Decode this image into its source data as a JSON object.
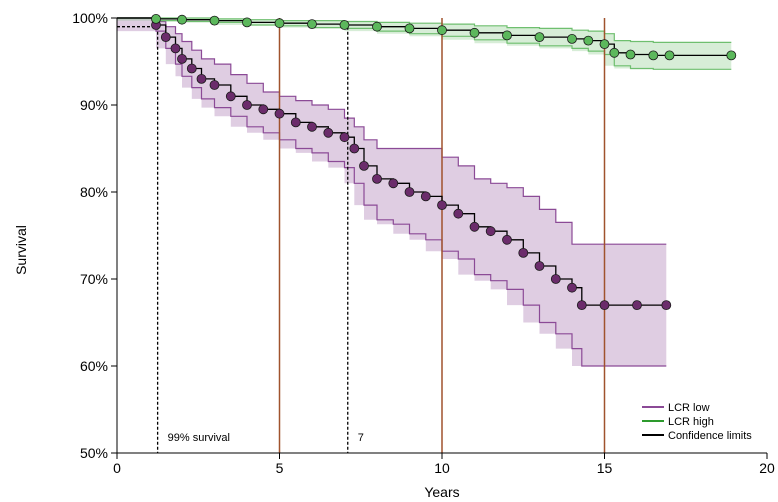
{
  "chart_data": {
    "type": "line",
    "title": "",
    "xlabel": "Years",
    "ylabel": "Survival",
    "xlim": [
      0,
      20
    ],
    "ylim": [
      50,
      100
    ],
    "x_ticks": [
      0,
      5,
      10,
      15,
      20
    ],
    "y_ticks": [
      50,
      60,
      70,
      80,
      90,
      100
    ],
    "x_tick_labels": [
      "0",
      "5",
      "10",
      "15",
      "20"
    ],
    "y_tick_labels": [
      "50%",
      "60%",
      "70%",
      "80%",
      "90%",
      "100%"
    ],
    "grid": false,
    "legend_position": "bottom-right",
    "vertical_reference_lines": [
      5,
      10,
      15
    ],
    "reference_lines": [
      {
        "label": "99% survival",
        "x": 1.25,
        "y": 99
      },
      {
        "label": "7",
        "x": 7.1,
        "y": 99
      }
    ],
    "series": [
      {
        "name": "LCR low",
        "color": "#6b2c6b",
        "band_color": "#8b4a96",
        "x": [
          0,
          1.2,
          1.5,
          1.8,
          2.0,
          2.3,
          2.6,
          3.0,
          3.5,
          4.0,
          4.5,
          5.0,
          5.5,
          6.0,
          6.5,
          7.0,
          7.3,
          7.6,
          8.0,
          8.5,
          9.0,
          9.5,
          10.0,
          10.5,
          11.0,
          11.5,
          12.0,
          12.5,
          13.0,
          13.5,
          14.0,
          14.3,
          15.0,
          16.0,
          16.9
        ],
        "y": [
          100,
          99.2,
          97.8,
          96.5,
          95.3,
          94.2,
          93.0,
          92.3,
          91.0,
          90.0,
          89.5,
          89.0,
          88.0,
          87.5,
          86.8,
          86.3,
          85.0,
          83.0,
          81.5,
          81.0,
          80.0,
          79.5,
          78.5,
          77.5,
          76.0,
          75.5,
          74.5,
          73.0,
          71.5,
          70.0,
          69.0,
          67.0,
          67.0,
          67.0,
          67.0
        ],
        "lower": [
          100,
          98.5,
          96.5,
          94.7,
          93.3,
          92.0,
          90.7,
          89.7,
          88.7,
          87.5,
          86.8,
          86.0,
          85.0,
          84.5,
          83.5,
          82.8,
          81.0,
          78.5,
          76.8,
          76.3,
          75.2,
          74.5,
          73.2,
          72.3,
          70.5,
          69.8,
          68.8,
          67.0,
          65.0,
          63.7,
          62.0,
          60.0,
          60.0,
          60.0,
          60.0
        ],
        "upper": [
          100,
          99.6,
          99.0,
          98.2,
          97.3,
          96.3,
          95.3,
          94.7,
          93.5,
          92.5,
          91.5,
          91.0,
          90.5,
          90.0,
          89.5,
          88.5,
          87.5,
          86.0,
          85.0,
          85.0,
          85.0,
          85.0,
          84.0,
          83.0,
          81.5,
          81.0,
          80.5,
          79.5,
          78.0,
          76.5,
          74.0,
          74.0,
          74.0,
          74.0,
          74.0
        ]
      },
      {
        "name": "LCR high",
        "color": "#2d7d2d",
        "marker_color": "#5cb85c",
        "band_color": "#6fbf6f",
        "x": [
          0,
          1.2,
          2.0,
          3.0,
          4.0,
          5.0,
          6.0,
          7.0,
          8.0,
          9.0,
          10.0,
          11.0,
          12.0,
          13.0,
          14.0,
          14.5,
          15.0,
          15.3,
          15.8,
          16.5,
          17.0,
          18.9
        ],
        "y": [
          100,
          99.9,
          99.8,
          99.7,
          99.5,
          99.4,
          99.3,
          99.2,
          99.0,
          98.8,
          98.6,
          98.3,
          98.0,
          97.8,
          97.6,
          97.4,
          97.0,
          96.0,
          95.8,
          95.7,
          95.7,
          95.7
        ],
        "lower": [
          100,
          99.7,
          99.6,
          99.5,
          99.2,
          99.1,
          98.9,
          98.8,
          98.5,
          98.2,
          97.9,
          97.5,
          97.1,
          96.8,
          96.5,
          96.2,
          95.8,
          94.5,
          94.2,
          94.1,
          94.1,
          94.1
        ],
        "upper": [
          100,
          100,
          100,
          99.9,
          99.8,
          99.7,
          99.7,
          99.6,
          99.5,
          99.4,
          99.3,
          99.1,
          98.9,
          98.8,
          98.6,
          98.5,
          98.2,
          97.4,
          97.3,
          97.2,
          97.2,
          97.2
        ]
      }
    ],
    "legend": [
      {
        "label": "LCR low",
        "color": "#8b4a96"
      },
      {
        "label": "LCR high",
        "color": "#2d9a2d"
      },
      {
        "label": "Confidence limits",
        "color": "#000000"
      }
    ]
  }
}
